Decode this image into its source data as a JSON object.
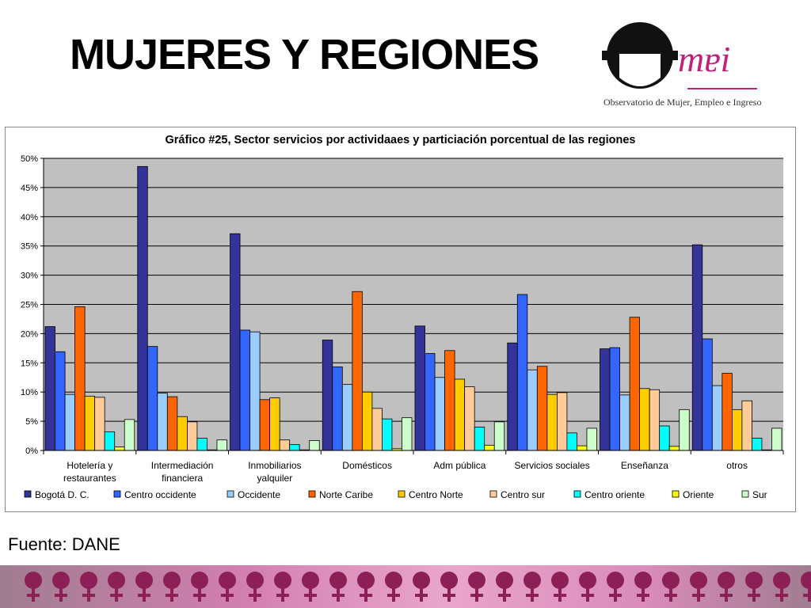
{
  "header": {
    "title": "MUJERES Y REGIONES"
  },
  "logo": {
    "mark": "mɐi",
    "caption": "Observatorio de Mujer, Empleo e Ingreso",
    "icon": "woman-face-logo-icon"
  },
  "source": {
    "text": "Fuente: DANE"
  },
  "colors": {
    "accent": "#c2217a",
    "footer_symbol": "#8c1f55"
  },
  "footer": {
    "symbol_icon": "venus-symbol-icon",
    "symbol_count": 29
  },
  "chart_data": {
    "type": "bar",
    "title": "Gráfico #25, Sector servicios por actividaaes y particiación porcentual de las regiones",
    "categories": [
      [
        "Hotelería y",
        "restaurantes"
      ],
      [
        "Intermediación",
        "financiera"
      ],
      [
        "Inmobiliarios",
        "yalquiler"
      ],
      [
        "Domésticos"
      ],
      [
        "Adm pública"
      ],
      [
        "Servicios sociales"
      ],
      [
        "Enseñanza"
      ],
      [
        "otros"
      ]
    ],
    "ylim": [
      0,
      50
    ],
    "yticks": [
      "0%",
      "5%",
      "10%",
      "15%",
      "20%",
      "25%",
      "30%",
      "35%",
      "40%",
      "45%",
      "50%"
    ],
    "grid": true,
    "legend_position": "bottom",
    "series": [
      {
        "name": "Bogotá D. C.",
        "color": "#333399",
        "values": [
          21.2,
          48.6,
          37.1,
          18.9,
          21.3,
          18.4,
          17.4,
          35.2
        ]
      },
      {
        "name": "Centro occidente",
        "color": "#3366ff",
        "values": [
          16.9,
          17.8,
          20.6,
          14.3,
          16.6,
          26.7,
          17.6,
          19.1
        ]
      },
      {
        "name": "Occidente",
        "color": "#99ccff",
        "values": [
          9.6,
          9.8,
          20.3,
          11.3,
          12.5,
          13.8,
          9.5,
          11.1
        ]
      },
      {
        "name": "Norte Caribe",
        "color": "#ff6600",
        "values": [
          24.6,
          9.2,
          8.7,
          27.2,
          17.1,
          14.4,
          22.8,
          13.2
        ]
      },
      {
        "name": "Centro Norte",
        "color": "#ffcc00",
        "values": [
          9.3,
          5.8,
          9.0,
          10.0,
          12.2,
          9.6,
          10.6,
          7.0
        ]
      },
      {
        "name": "Centro sur",
        "color": "#ffcc99",
        "values": [
          9.1,
          4.9,
          1.8,
          7.2,
          10.9,
          9.9,
          10.4,
          8.5
        ]
      },
      {
        "name": "Centro oriente",
        "color": "#00ffff",
        "values": [
          3.2,
          2.1,
          1.0,
          5.4,
          4.0,
          3.0,
          4.2,
          2.1
        ]
      },
      {
        "name": "Oriente",
        "color": "#ffff00",
        "values": [
          0.6,
          0.1,
          0.1,
          0.3,
          0.9,
          0.8,
          0.7,
          0.1
        ]
      },
      {
        "name": "Sur",
        "color": "#ccffcc",
        "values": [
          5.3,
          1.8,
          1.7,
          5.6,
          4.9,
          3.8,
          7.0,
          3.8
        ]
      }
    ]
  }
}
